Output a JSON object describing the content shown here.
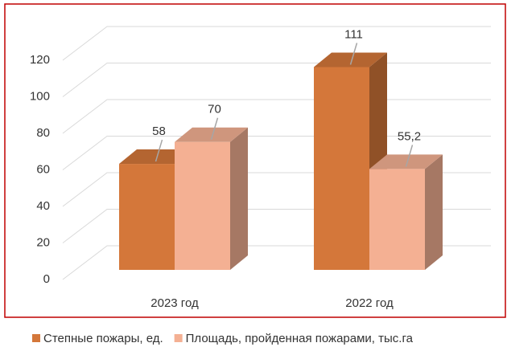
{
  "chart_data": {
    "type": "bar3d",
    "categories": [
      "2023 год",
      "2022 год"
    ],
    "series": [
      {
        "name": "Степные пожары, ед.",
        "color": "#d4773a",
        "values": [
          58,
          111
        ]
      },
      {
        "name": "Площадь, пройденная пожарами, тыс.га",
        "color": "#f4b093",
        "values": [
          70,
          55.2
        ],
        "value_labels": [
          "70",
          "55,2"
        ]
      }
    ],
    "ylim": [
      0,
      120
    ],
    "yticks": [
      0,
      20,
      40,
      60,
      80,
      100,
      120
    ],
    "grid": true,
    "legend": "bottom"
  }
}
